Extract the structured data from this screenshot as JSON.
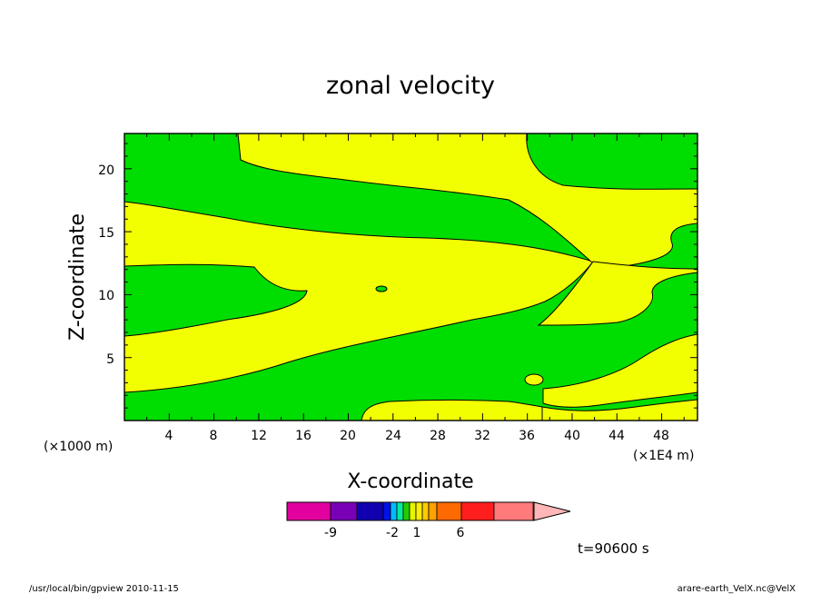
{
  "chart_data": {
    "type": "contour",
    "title": "zonal velocity",
    "xlabel": "X-coordinate",
    "ylabel": "Z-coordinate",
    "x_scale_note": "(×1000 m)",
    "x_unit_note": "(×1E4 m)",
    "xlim": [
      0,
      51.2
    ],
    "ylim": [
      0,
      22.8
    ],
    "x_ticks": [
      "4",
      "8",
      "12",
      "16",
      "20",
      "24",
      "28",
      "32",
      "36",
      "40",
      "44",
      "48"
    ],
    "y_ticks": [
      "5",
      "10",
      "15",
      "20"
    ],
    "fill_colors": {
      "green": "#00DD00",
      "yellow": "#F2FF00"
    },
    "colorbar": {
      "labels": [
        "-9",
        "-2",
        "1",
        "6"
      ],
      "colors": [
        "#E2009E",
        "#7A00B8",
        "#1100B0",
        "#0011E8",
        "#00BBFF",
        "#00EE99",
        "#22CC00",
        "#E5F500",
        "#FFEE00",
        "#FFCC00",
        "#FFA200",
        "#FF6A00",
        "#FF1E1E",
        "#FF7B7B",
        "#FFB6B6"
      ]
    },
    "time_label": "t=90600 s"
  },
  "footer": {
    "left": "/usr/local/bin/gpview  2010-11-15",
    "right": "arare-earth_VelX.nc@VelX"
  }
}
